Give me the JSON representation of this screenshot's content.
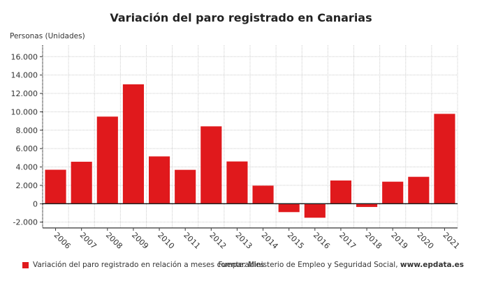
{
  "chart_data": {
    "type": "bar",
    "title": "Variación del paro registrado en Canarias",
    "ylabel": "Personas (Unidades)",
    "xlabel": "",
    "categories": [
      "2006",
      "2007",
      "2008",
      "2009",
      "2010",
      "2011",
      "2012",
      "2013",
      "2014",
      "2015",
      "2016",
      "2017",
      "2018",
      "2019",
      "2020",
      "2021"
    ],
    "series": [
      {
        "name": "Variación del paro registrado en relación a meses comparables",
        "values": [
          3700,
          4570,
          9480,
          12990,
          5150,
          3690,
          8420,
          4600,
          1970,
          -910,
          -1520,
          2530,
          -350,
          2400,
          2930,
          9780
        ]
      }
    ],
    "ylim": [
      -2000,
      16000
    ],
    "yticks": [
      16000,
      14000,
      12000,
      10000,
      8000,
      6000,
      4000,
      2000,
      0,
      -2000
    ],
    "ytick_labels": [
      "16.000",
      "14.000",
      "12.000",
      "10.000",
      "8.000",
      "6.000",
      "4.000",
      "2.000",
      "0",
      "-2.000"
    ],
    "grid": true,
    "legend": "bottom-left",
    "color": "#e0191c"
  },
  "source": {
    "prefix": "Fuente: Ministerio de Empleo y Seguridad Social, ",
    "site": "www.epdata.es"
  }
}
